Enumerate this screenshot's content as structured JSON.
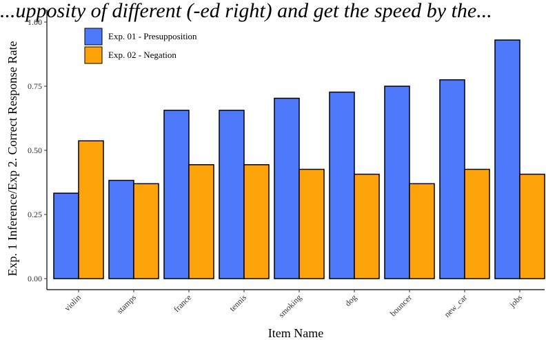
{
  "chart_data": {
    "type": "bar",
    "title": "...upposity of different (-ed right) and get the speed by the...",
    "xlabel": "Item Name",
    "ylabel": "Exp. 1 Inference/Exp 2. Correct Response Rate",
    "ylim": [
      0,
      1.0
    ],
    "yticks": [
      "0.00",
      "0.25",
      "0.50",
      "0.75",
      "1.00"
    ],
    "grid": false,
    "legend_position": "top-left",
    "categories": [
      "violin",
      "stamps",
      "france",
      "tennis",
      "smoking",
      "dog",
      "bouncer",
      "new_car",
      "jobs"
    ],
    "series": [
      {
        "name": "Exp. 01 - Presupposition",
        "color": "#4f79fb",
        "values": [
          0.333,
          0.383,
          0.656,
          0.656,
          0.703,
          0.727,
          0.75,
          0.775,
          0.93
        ]
      },
      {
        "name": "Exp. 02 - Negation",
        "color": "#ffa30a",
        "values": [
          0.537,
          0.37,
          0.444,
          0.444,
          0.426,
          0.407,
          0.37,
          0.426,
          0.407
        ]
      }
    ]
  }
}
